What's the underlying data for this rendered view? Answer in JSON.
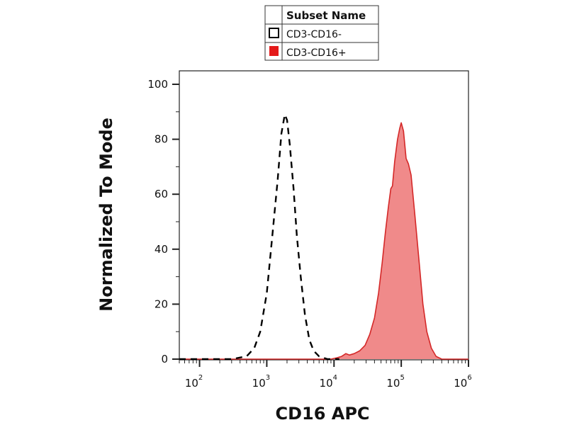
{
  "chart_data": {
    "type": "area",
    "xlabel": "CD16 APC",
    "ylabel": "Normalized To Mode",
    "x_scale": "log",
    "xlim": [
      50,
      1000000
    ],
    "ylim": [
      0,
      100
    ],
    "x_ticks": [
      {
        "value": 100,
        "base": "10",
        "exp": "2"
      },
      {
        "value": 1000,
        "base": "10",
        "exp": "3"
      },
      {
        "value": 10000,
        "base": "10",
        "exp": "4"
      },
      {
        "value": 100000,
        "base": "10",
        "exp": "5"
      },
      {
        "value": 1000000,
        "base": "10",
        "exp": "6"
      }
    ],
    "y_ticks": [
      0,
      20,
      40,
      60,
      80,
      100
    ],
    "grid": false,
    "legend": {
      "placement": "top-center",
      "header": "Subset Name",
      "entries": [
        "CD3-CD16-",
        "CD3-CD16+"
      ]
    },
    "series": [
      {
        "name": "CD3-CD16-",
        "style": "dashed",
        "color": "#000000",
        "fill": "none",
        "points": [
          [
            50,
            0
          ],
          [
            300,
            0
          ],
          [
            500,
            1
          ],
          [
            650,
            4
          ],
          [
            800,
            10
          ],
          [
            1000,
            24
          ],
          [
            1200,
            44
          ],
          [
            1450,
            65
          ],
          [
            1650,
            82
          ],
          [
            1850,
            89
          ],
          [
            2000,
            87
          ],
          [
            2200,
            78
          ],
          [
            2500,
            62
          ],
          [
            2800,
            45
          ],
          [
            3200,
            30
          ],
          [
            3700,
            16
          ],
          [
            4300,
            7
          ],
          [
            5000,
            3
          ],
          [
            6000,
            1
          ],
          [
            8000,
            0
          ],
          [
            12000,
            0
          ]
        ]
      },
      {
        "name": "CD3-CD16+",
        "style": "solid",
        "color": "#d42828",
        "fill": "#f08a8a",
        "points": [
          [
            50,
            0
          ],
          [
            9000,
            0
          ],
          [
            11000,
            0.5
          ],
          [
            13000,
            1
          ],
          [
            15000,
            2
          ],
          [
            17000,
            1.5
          ],
          [
            20000,
            2
          ],
          [
            24000,
            3
          ],
          [
            29000,
            5
          ],
          [
            34000,
            9
          ],
          [
            40000,
            15
          ],
          [
            46000,
            24
          ],
          [
            52000,
            35
          ],
          [
            58000,
            46
          ],
          [
            64000,
            55
          ],
          [
            70000,
            62
          ],
          [
            74000,
            63
          ],
          [
            80000,
            72
          ],
          [
            88000,
            80
          ],
          [
            95000,
            84
          ],
          [
            100000,
            86
          ],
          [
            108000,
            83
          ],
          [
            118000,
            73
          ],
          [
            128000,
            71
          ],
          [
            140000,
            67
          ],
          [
            160000,
            52
          ],
          [
            185000,
            35
          ],
          [
            210000,
            20
          ],
          [
            240000,
            10
          ],
          [
            280000,
            4
          ],
          [
            330000,
            1
          ],
          [
            400000,
            0
          ],
          [
            1000000,
            0
          ]
        ]
      }
    ]
  }
}
